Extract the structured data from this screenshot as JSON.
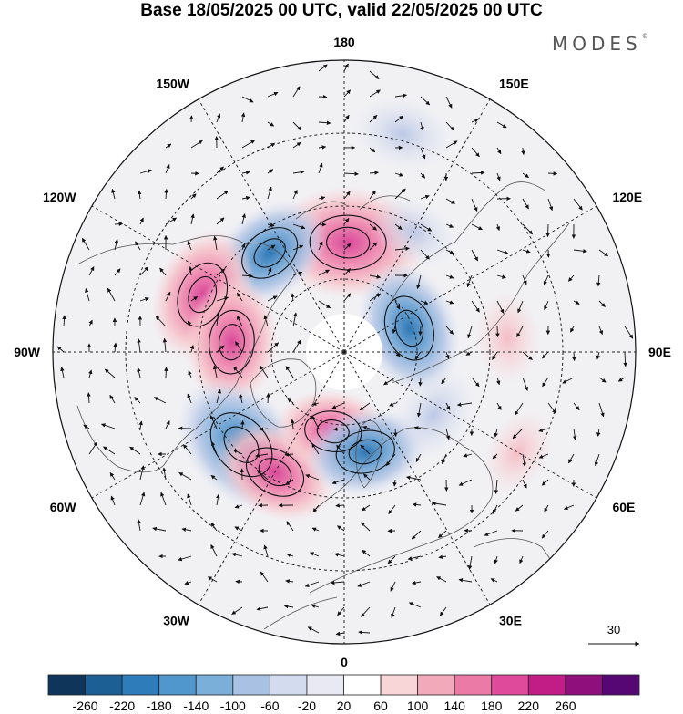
{
  "title": "Base 18/05/2025 00 UTC, valid 22/05/2025 00 UTC",
  "brand": "MODES",
  "brand_mark": "©",
  "longitude_labels": [
    {
      "text": "180",
      "lon": 180
    },
    {
      "text": "150E",
      "lon": 150
    },
    {
      "text": "120E",
      "lon": 120
    },
    {
      "text": "90E",
      "lon": 90
    },
    {
      "text": "60E",
      "lon": 60
    },
    {
      "text": "30E",
      "lon": 30
    },
    {
      "text": "0",
      "lon": 0
    },
    {
      "text": "30W",
      "lon": -30
    },
    {
      "text": "60W",
      "lon": -60
    },
    {
      "text": "90W",
      "lon": -90
    },
    {
      "text": "120W",
      "lon": -120
    },
    {
      "text": "150W",
      "lon": -150
    }
  ],
  "vector_reference": {
    "label": "30",
    "value": 30
  },
  "colorbar": {
    "ticks": [
      "-260",
      "-220",
      "-180",
      "-140",
      "-100",
      "-60",
      "-20",
      "20",
      "60",
      "100",
      "140",
      "180",
      "220",
      "260"
    ],
    "colors": [
      "#10355a",
      "#1b5f94",
      "#2f7cba",
      "#4f97cc",
      "#7aafda",
      "#a9c2e4",
      "#d3dcef",
      "#e9e9f3",
      "#ffffff",
      "#f8d5d7",
      "#f2aabb",
      "#ec7aa6",
      "#e04a9a",
      "#c21c86",
      "#8f0f7c",
      "#570773"
    ]
  },
  "anomaly_centers": [
    {
      "lon": 178,
      "colat": 30,
      "value": 190,
      "sign": "pos"
    },
    {
      "lon": -143,
      "colat": 34,
      "value": -120,
      "sign": "neg"
    },
    {
      "lon": -112,
      "colat": 42,
      "value": 140,
      "sign": "pos"
    },
    {
      "lon": -95,
      "colat": 31,
      "value": 130,
      "sign": "pos"
    },
    {
      "lon": -48,
      "colat": 38,
      "value": -170,
      "sign": "neg"
    },
    {
      "lon": -30,
      "colat": 38,
      "value": 120,
      "sign": "pos"
    },
    {
      "lon": -8,
      "colat": 22,
      "value": 100,
      "sign": "pos"
    },
    {
      "lon": 12,
      "colat": 28,
      "value": -110,
      "sign": "neg"
    },
    {
      "lon": 110,
      "colat": 19,
      "value": -140,
      "sign": "neg"
    },
    {
      "lon": 150,
      "colat": 38,
      "value": -40,
      "sign": "neg"
    },
    {
      "lon": 165,
      "colat": 62,
      "value": -60,
      "sign": "neg"
    },
    {
      "lon": 95,
      "colat": 45,
      "value": 50,
      "sign": "pos"
    },
    {
      "lon": 55,
      "colat": 30,
      "value": -60,
      "sign": "neg"
    },
    {
      "lon": 60,
      "colat": 55,
      "value": 40,
      "sign": "pos"
    }
  ]
}
